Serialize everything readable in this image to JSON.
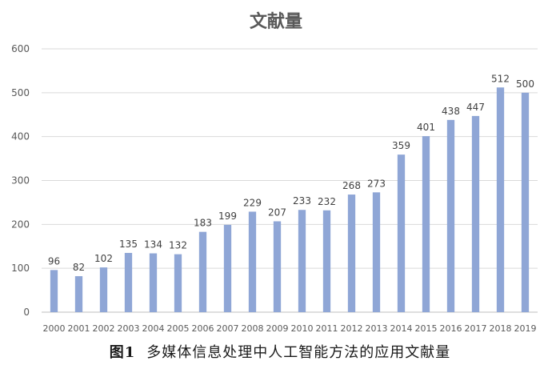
{
  "caption": {
    "figure_number": "图1",
    "text": "多媒体信息处理中人工智能方法的应用文献量"
  },
  "colors": {
    "bar": "#8FA6D6"
  },
  "chart_data": {
    "type": "bar",
    "title": "文献量",
    "xlabel": "",
    "ylabel": "",
    "categories": [
      "2000",
      "2001",
      "2002",
      "2003",
      "2004",
      "2005",
      "2006",
      "2007",
      "2008",
      "2009",
      "2010",
      "2011",
      "2012",
      "2013",
      "2014",
      "2015",
      "2016",
      "2017",
      "2018",
      "2019"
    ],
    "values": [
      96,
      82,
      102,
      135,
      134,
      132,
      183,
      199,
      229,
      207,
      233,
      232,
      268,
      273,
      359,
      401,
      438,
      447,
      512,
      500
    ],
    "ylim": [
      0,
      600
    ],
    "yticks": [
      0,
      100,
      200,
      300,
      400,
      500,
      600
    ],
    "grid": true,
    "legend": "none"
  }
}
